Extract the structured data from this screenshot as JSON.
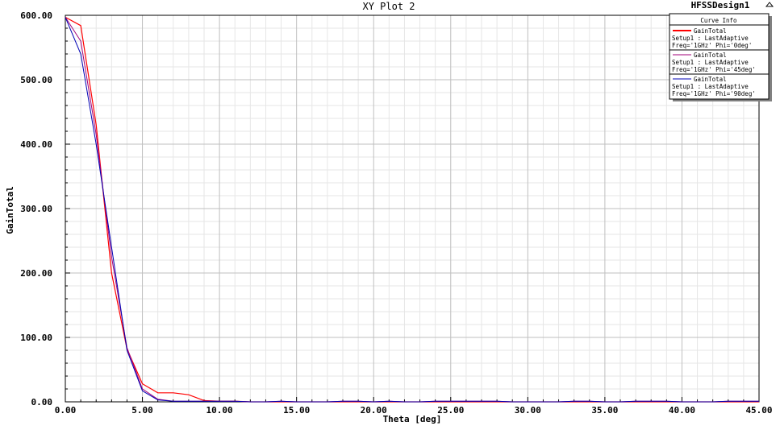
{
  "chart_data": {
    "type": "line",
    "title": "XY Plot 2",
    "design_name": "HFSSDesign1",
    "xlabel": "Theta [deg]",
    "ylabel": "GainTotal",
    "xlim": [
      0,
      45
    ],
    "ylim": [
      0,
      600
    ],
    "x_ticks": [
      "0.00",
      "5.00",
      "10.00",
      "15.00",
      "20.00",
      "25.00",
      "30.00",
      "35.00",
      "40.00",
      "45.00"
    ],
    "y_ticks": [
      "0.00",
      "100.00",
      "200.00",
      "300.00",
      "400.00",
      "500.00",
      "600.00"
    ],
    "grid": true,
    "legend": {
      "header": "Curve Info",
      "placement": "top-right",
      "entries": [
        {
          "line1": "GainTotal",
          "line2": "Setup1 : LastAdaptive",
          "line3": "Freq='1GHz' Phi='0deg'"
        },
        {
          "line1": "GainTotal",
          "line2": "Setup1 : LastAdaptive",
          "line3": "Freq='1GHz' Phi='45deg'"
        },
        {
          "line1": "GainTotal",
          "line2": "Setup1 : LastAdaptive",
          "line3": "Freq='1GHz' Phi='90deg'"
        }
      ]
    },
    "x": [
      0,
      1,
      2,
      3,
      4,
      5,
      6,
      7,
      8,
      9,
      10,
      11,
      12,
      13,
      14,
      15,
      16,
      17,
      18,
      19,
      20,
      21,
      22,
      23,
      24,
      25,
      26,
      27,
      28,
      29,
      30,
      31,
      32,
      33,
      34,
      35,
      36,
      37,
      38,
      39,
      40,
      41,
      42,
      43,
      44,
      45
    ],
    "series": [
      {
        "color": "#ff0000",
        "values": [
          597,
          584,
          430,
          200,
          82,
          28,
          14,
          14,
          11,
          2,
          1,
          1,
          0,
          0,
          0,
          0,
          0,
          0,
          0,
          0,
          0,
          0,
          0,
          0,
          0,
          0,
          0,
          0,
          0,
          0,
          0,
          0,
          0,
          0,
          0,
          0,
          0,
          0,
          0,
          0,
          0,
          0,
          0,
          0,
          0,
          0
        ]
      },
      {
        "color": "#a0007a",
        "values": [
          597,
          560,
          415,
          225,
          84,
          20,
          4,
          1,
          1,
          1,
          1,
          1,
          0,
          0,
          1,
          0,
          0,
          0,
          1,
          1,
          0,
          1,
          0,
          0,
          1,
          1,
          1,
          1,
          1,
          0,
          0,
          0,
          0,
          1,
          1,
          0,
          0,
          1,
          1,
          1,
          0,
          0,
          0,
          1,
          1,
          1
        ]
      },
      {
        "color": "#0000b4",
        "values": [
          597,
          540,
          400,
          240,
          80,
          17,
          3,
          1,
          1,
          1,
          1,
          1,
          0,
          0,
          1,
          0,
          0,
          0,
          1,
          1,
          0,
          1,
          0,
          0,
          1,
          1,
          1,
          1,
          1,
          0,
          0,
          0,
          0,
          1,
          1,
          0,
          0,
          1,
          1,
          1,
          0,
          0,
          0,
          1,
          1,
          1
        ]
      }
    ]
  }
}
